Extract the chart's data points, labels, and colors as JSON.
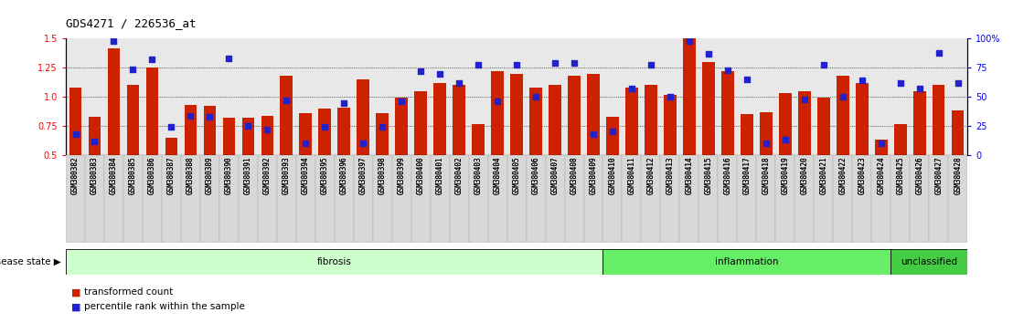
{
  "title": "GDS4271 / 226536_at",
  "samples": [
    "GSM380382",
    "GSM380383",
    "GSM380384",
    "GSM380385",
    "GSM380386",
    "GSM380387",
    "GSM380388",
    "GSM380389",
    "GSM380390",
    "GSM380391",
    "GSM380392",
    "GSM380393",
    "GSM380394",
    "GSM380395",
    "GSM380396",
    "GSM380397",
    "GSM380398",
    "GSM380399",
    "GSM380400",
    "GSM380401",
    "GSM380402",
    "GSM380403",
    "GSM380404",
    "GSM380405",
    "GSM380406",
    "GSM380407",
    "GSM380408",
    "GSM380409",
    "GSM380410",
    "GSM380411",
    "GSM380412",
    "GSM380413",
    "GSM380414",
    "GSM380415",
    "GSM380416",
    "GSM380417",
    "GSM380418",
    "GSM380419",
    "GSM380420",
    "GSM380421",
    "GSM380422",
    "GSM380423",
    "GSM380424",
    "GSM380425",
    "GSM380426",
    "GSM380427",
    "GSM380428"
  ],
  "bar_values": [
    1.08,
    0.83,
    1.42,
    1.1,
    1.25,
    0.65,
    0.93,
    0.92,
    0.82,
    0.82,
    0.84,
    1.18,
    0.86,
    0.9,
    0.91,
    1.15,
    0.86,
    0.99,
    1.05,
    1.12,
    1.1,
    0.77,
    1.22,
    1.2,
    1.08,
    1.1,
    1.18,
    1.2,
    0.83,
    1.08,
    1.1,
    1.02,
    1.5,
    1.3,
    1.22,
    0.85,
    0.87,
    1.03,
    1.05,
    0.99,
    1.18,
    1.12,
    0.63,
    0.77,
    1.05,
    1.1,
    0.88
  ],
  "dot_values_pct": [
    18,
    12,
    98,
    74,
    82,
    24,
    34,
    33,
    83,
    25,
    22,
    47,
    10,
    24,
    45,
    10,
    24,
    46,
    72,
    70,
    62,
    78,
    46,
    78,
    50,
    79,
    79,
    18,
    20,
    57,
    78,
    50,
    98,
    87,
    73,
    65,
    10,
    13,
    48,
    78,
    50,
    64,
    10,
    62,
    57,
    88,
    62
  ],
  "groups": [
    {
      "label": "fibrosis",
      "start": 0,
      "end": 28,
      "color": "#ccffcc"
    },
    {
      "label": "inflammation",
      "start": 28,
      "end": 43,
      "color": "#66ee66"
    },
    {
      "label": "unclassified",
      "start": 43,
      "end": 47,
      "color": "#44cc44"
    }
  ],
  "ylim": [
    0.5,
    1.5
  ],
  "yticks_left": [
    0.5,
    0.75,
    1.0,
    1.25,
    1.5
  ],
  "yticks_right": [
    0,
    25,
    50,
    75,
    100
  ],
  "hlines": [
    0.75,
    1.0,
    1.25
  ],
  "bar_color": "#cc2200",
  "dot_color": "#2222cc",
  "bar_width": 0.65,
  "plot_bg": "#e8e8e8"
}
